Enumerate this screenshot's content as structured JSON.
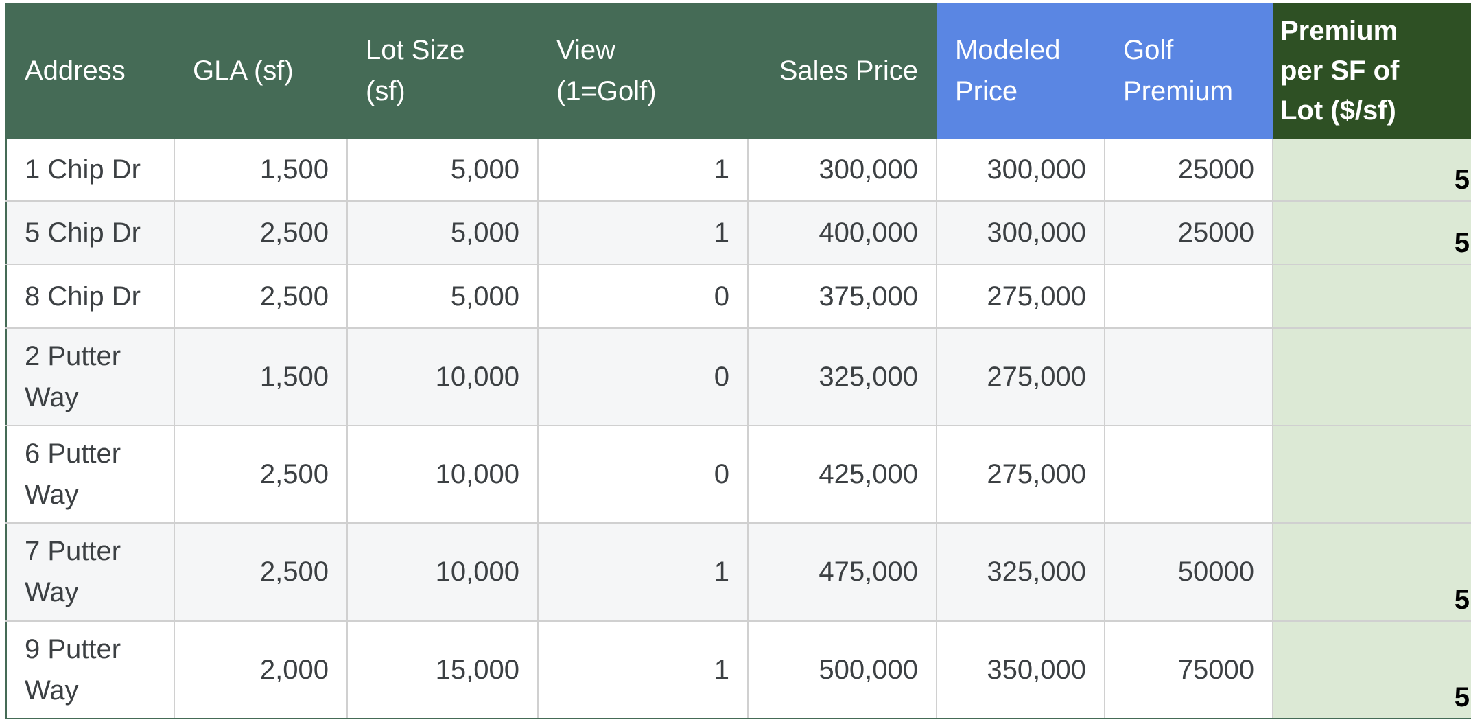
{
  "headers": {
    "address": "Address",
    "gla": "GLA (sf)",
    "lot_size": "Lot Size\n(sf)",
    "view": "View\n(1=Golf)",
    "sales_price": "Sales Price",
    "modeled_price": "Modeled\nPrice",
    "golf_premium": "Golf\nPremium",
    "premium_per_sf": "Premium\nper SF of\nLot ($/sf)"
  },
  "rows": [
    {
      "address": "1 Chip Dr",
      "gla": "1,500",
      "lot": "5,000",
      "view": "1",
      "sales": "300,000",
      "modeled": "300,000",
      "golf": "25000",
      "prem": "5"
    },
    {
      "address": "5 Chip Dr",
      "gla": "2,500",
      "lot": "5,000",
      "view": "1",
      "sales": "400,000",
      "modeled": "300,000",
      "golf": "25000",
      "prem": "5"
    },
    {
      "address": "8 Chip Dr",
      "gla": "2,500",
      "lot": "5,000",
      "view": "0",
      "sales": "375,000",
      "modeled": "275,000",
      "golf": "",
      "prem": ""
    },
    {
      "address": "2 Putter Way",
      "gla": "1,500",
      "lot": "10,000",
      "view": "0",
      "sales": "325,000",
      "modeled": "275,000",
      "golf": "",
      "prem": ""
    },
    {
      "address": "6 Putter Way",
      "gla": "2,500",
      "lot": "10,000",
      "view": "0",
      "sales": "425,000",
      "modeled": "275,000",
      "golf": "",
      "prem": ""
    },
    {
      "address": "7 Putter Way",
      "gla": "2,500",
      "lot": "10,000",
      "view": "1",
      "sales": "475,000",
      "modeled": "325,000",
      "golf": "50000",
      "prem": "5"
    },
    {
      "address": "9 Putter Way",
      "gla": "2,000",
      "lot": "15,000",
      "view": "1",
      "sales": "500,000",
      "modeled": "350,000",
      "golf": "75000",
      "prem": "5"
    }
  ],
  "colors": {
    "header_green": "#456b56",
    "header_blue": "#5a86e3",
    "header_dark_green": "#2e5024",
    "premium_cell_bg": "#dce9d5"
  }
}
